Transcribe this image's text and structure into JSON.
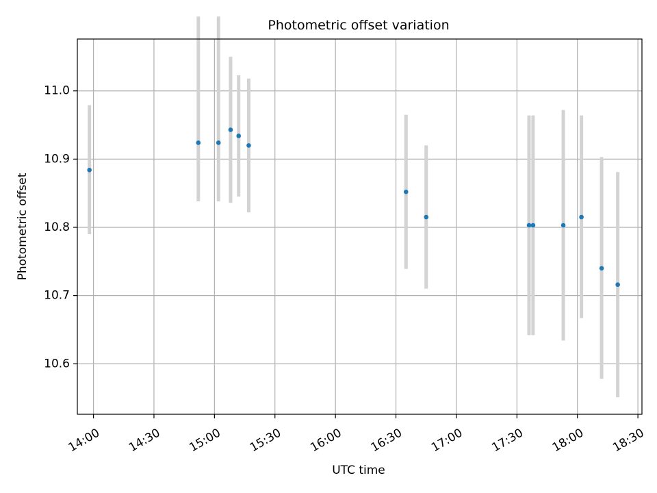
{
  "chart_data": {
    "type": "scatter",
    "title": "Photometric offset variation",
    "xlabel": "UTC time",
    "ylabel": "Photometric offset",
    "grid": true,
    "x_axis_type": "time",
    "x_tick_labels": [
      "14:00",
      "14:30",
      "15:00",
      "15:30",
      "16:00",
      "16:30",
      "17:00",
      "17:30",
      "18:00",
      "18:30"
    ],
    "y_tick_labels": [
      "10.6",
      "10.7",
      "10.8",
      "10.9",
      "11.0"
    ],
    "x_ticks": [
      "14:00",
      "14:30",
      "15:00",
      "15:30",
      "16:00",
      "16:30",
      "17:00",
      "17:30",
      "18:00",
      "18:30"
    ],
    "y_ticks": [
      10.6,
      10.7,
      10.8,
      10.9,
      11.0
    ],
    "xlim": [
      "13:52",
      "18:32"
    ],
    "ylim": [
      10.526,
      11.076
    ],
    "colors": {
      "point": "#1f77b4",
      "errorbar": "#d3d3d3",
      "grid": "#b0b0b0"
    },
    "series": [
      {
        "points": [
          {
            "x": "13:58",
            "y": 10.884,
            "err_low": 10.79,
            "err_high": 10.979
          },
          {
            "x": "14:52",
            "y": 10.924,
            "err_low": 10.838,
            "err_high": 11.109
          },
          {
            "x": "15:02",
            "y": 10.924,
            "err_low": 10.838,
            "err_high": 11.109
          },
          {
            "x": "15:08",
            "y": 10.943,
            "err_low": 10.836,
            "err_high": 11.05
          },
          {
            "x": "15:12",
            "y": 10.934,
            "err_low": 10.845,
            "err_high": 11.023
          },
          {
            "x": "15:17",
            "y": 10.92,
            "err_low": 10.822,
            "err_high": 11.018
          },
          {
            "x": "16:35",
            "y": 10.852,
            "err_low": 10.739,
            "err_high": 10.965
          },
          {
            "x": "16:45",
            "y": 10.815,
            "err_low": 10.71,
            "err_high": 10.92
          },
          {
            "x": "17:36",
            "y": 10.803,
            "err_low": 10.642,
            "err_high": 10.964
          },
          {
            "x": "17:38",
            "y": 10.803,
            "err_low": 10.642,
            "err_high": 10.964
          },
          {
            "x": "17:53",
            "y": 10.803,
            "err_low": 10.634,
            "err_high": 10.972
          },
          {
            "x": "18:02",
            "y": 10.815,
            "err_low": 10.667,
            "err_high": 10.964
          },
          {
            "x": "18:12",
            "y": 10.74,
            "err_low": 10.578,
            "err_high": 10.903
          },
          {
            "x": "18:20",
            "y": 10.716,
            "err_low": 10.551,
            "err_high": 10.881
          }
        ]
      }
    ]
  }
}
